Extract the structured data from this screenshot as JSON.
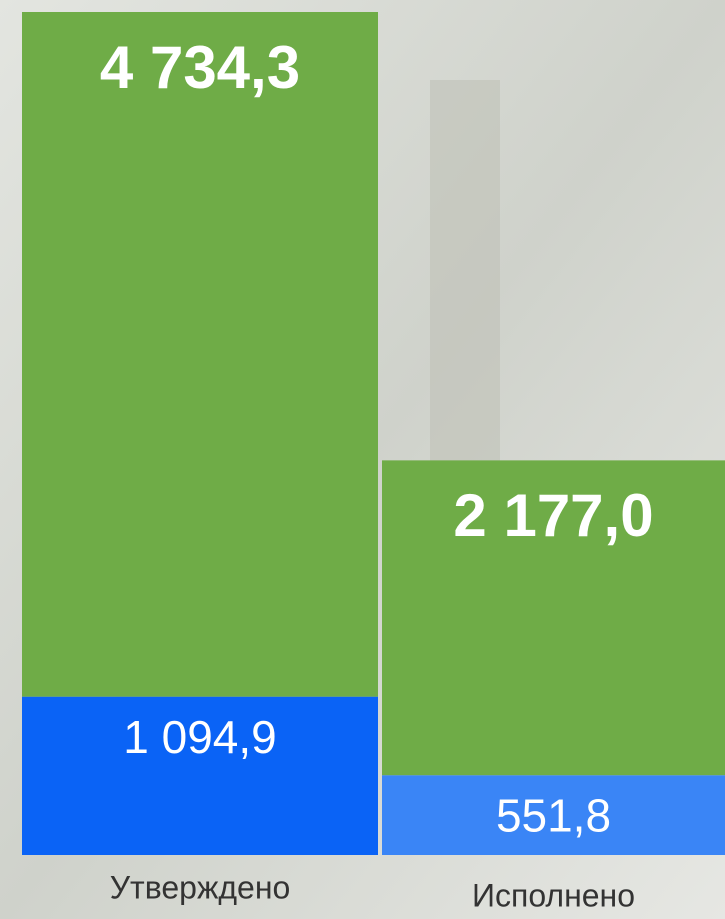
{
  "chart_data": {
    "type": "stacked-bar",
    "categories": [
      "Утверждено",
      "Исполнено"
    ],
    "series": [
      {
        "color": "#1065f5",
        "colors": [
          "#0a63f6",
          "#3a85f6"
        ],
        "values": [
          1094.9,
          551.8
        ],
        "value_labels": [
          "1 094,9",
          "551,8"
        ]
      },
      {
        "color": "#6fac47",
        "values": [
          4734.3,
          2177.0
        ],
        "value_labels": [
          "4 734,3",
          "2 177,0"
        ]
      }
    ]
  }
}
